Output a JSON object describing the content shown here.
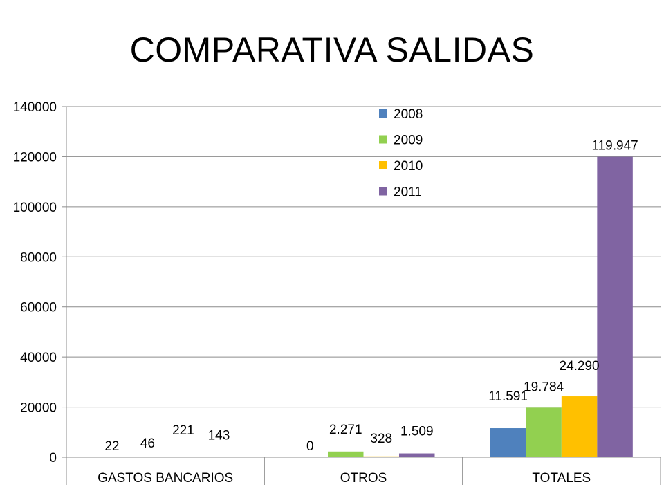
{
  "title": "COMPARATIVA SALIDAS",
  "chart_data": {
    "type": "bar",
    "categories": [
      "GASTOS BANCARIOS",
      "OTROS",
      "TOTALES"
    ],
    "series": [
      {
        "name": "2008",
        "color": "#4F81BD",
        "values": [
          22,
          0,
          11591
        ],
        "labels": [
          "22",
          "0",
          "11.591"
        ]
      },
      {
        "name": "2009",
        "color": "#92D050",
        "values": [
          46,
          2271,
          19784
        ],
        "labels": [
          "46",
          "2.271",
          "19.784"
        ]
      },
      {
        "name": "2010",
        "color": "#FFC000",
        "values": [
          221,
          328,
          24290
        ],
        "labels": [
          "221",
          "328",
          "24.290"
        ]
      },
      {
        "name": "2011",
        "color": "#8064A2",
        "values": [
          143,
          1509,
          119947
        ],
        "labels": [
          "143",
          "1.509",
          "119.947"
        ]
      }
    ],
    "ylim": [
      0,
      140000
    ],
    "yticks": [
      0,
      20000,
      40000,
      60000,
      80000,
      100000,
      120000,
      140000
    ],
    "grid": true,
    "legend_position": "top-center"
  }
}
